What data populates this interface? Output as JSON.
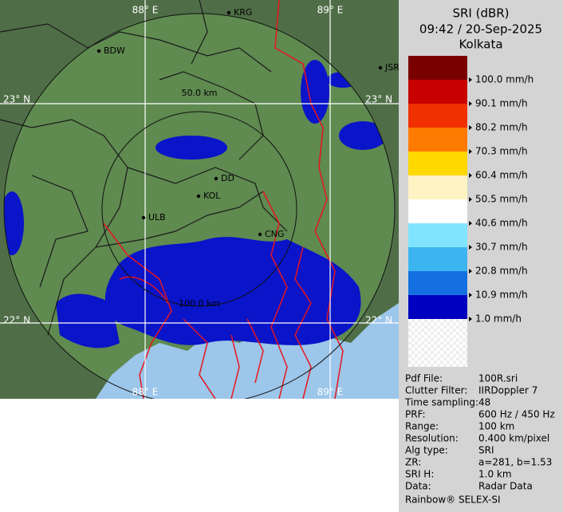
{
  "map": {
    "lon_labels": [
      "88° E",
      "89° E"
    ],
    "lat_labels": [
      "23° N",
      "22° N"
    ],
    "range_rings": [
      "50.0 km",
      "100.0 km"
    ],
    "places": [
      "BDW",
      "KRG",
      "JSR",
      "DD",
      "KOL",
      "ULB",
      "CNG"
    ]
  },
  "panel": {
    "title": "SRI (dBR)",
    "timestamp": "09:42 / 20-Sep-2025",
    "site": "Kolkata",
    "legend": {
      "colors": [
        "#7a0000",
        "#c80000",
        "#f03000",
        "#ff7a00",
        "#ffd800",
        "#fff3c4",
        "#ffffff",
        "#80e4ff",
        "#3cb4f0",
        "#1470e0",
        "#0000c0"
      ],
      "labels": [
        "100.0 mm/h",
        "90.1 mm/h",
        "80.2 mm/h",
        "70.3 mm/h",
        "60.4 mm/h",
        "50.5 mm/h",
        "40.6 mm/h",
        "30.7 mm/h",
        "20.8 mm/h",
        "10.9 mm/h",
        "1.0 mm/h"
      ]
    },
    "info": [
      [
        "Pdf File:",
        "100R.sri"
      ],
      [
        "Clutter Filter:",
        "IIRDoppler 7"
      ],
      [
        "Time sampling:",
        "48"
      ],
      [
        "PRF:",
        "600 Hz / 450 Hz"
      ],
      [
        "Range:",
        "100 km"
      ],
      [
        "Resolution:",
        "0.400 km/pixel"
      ],
      [
        "Alg type:",
        "SRI"
      ],
      [
        "ZR:",
        "a=281, b=1.53"
      ],
      [
        "SRI H:",
        "1.0 km"
      ],
      [
        "Data:",
        "Radar Data"
      ]
    ],
    "footer": "Rainbow® SELEX-SI"
  }
}
